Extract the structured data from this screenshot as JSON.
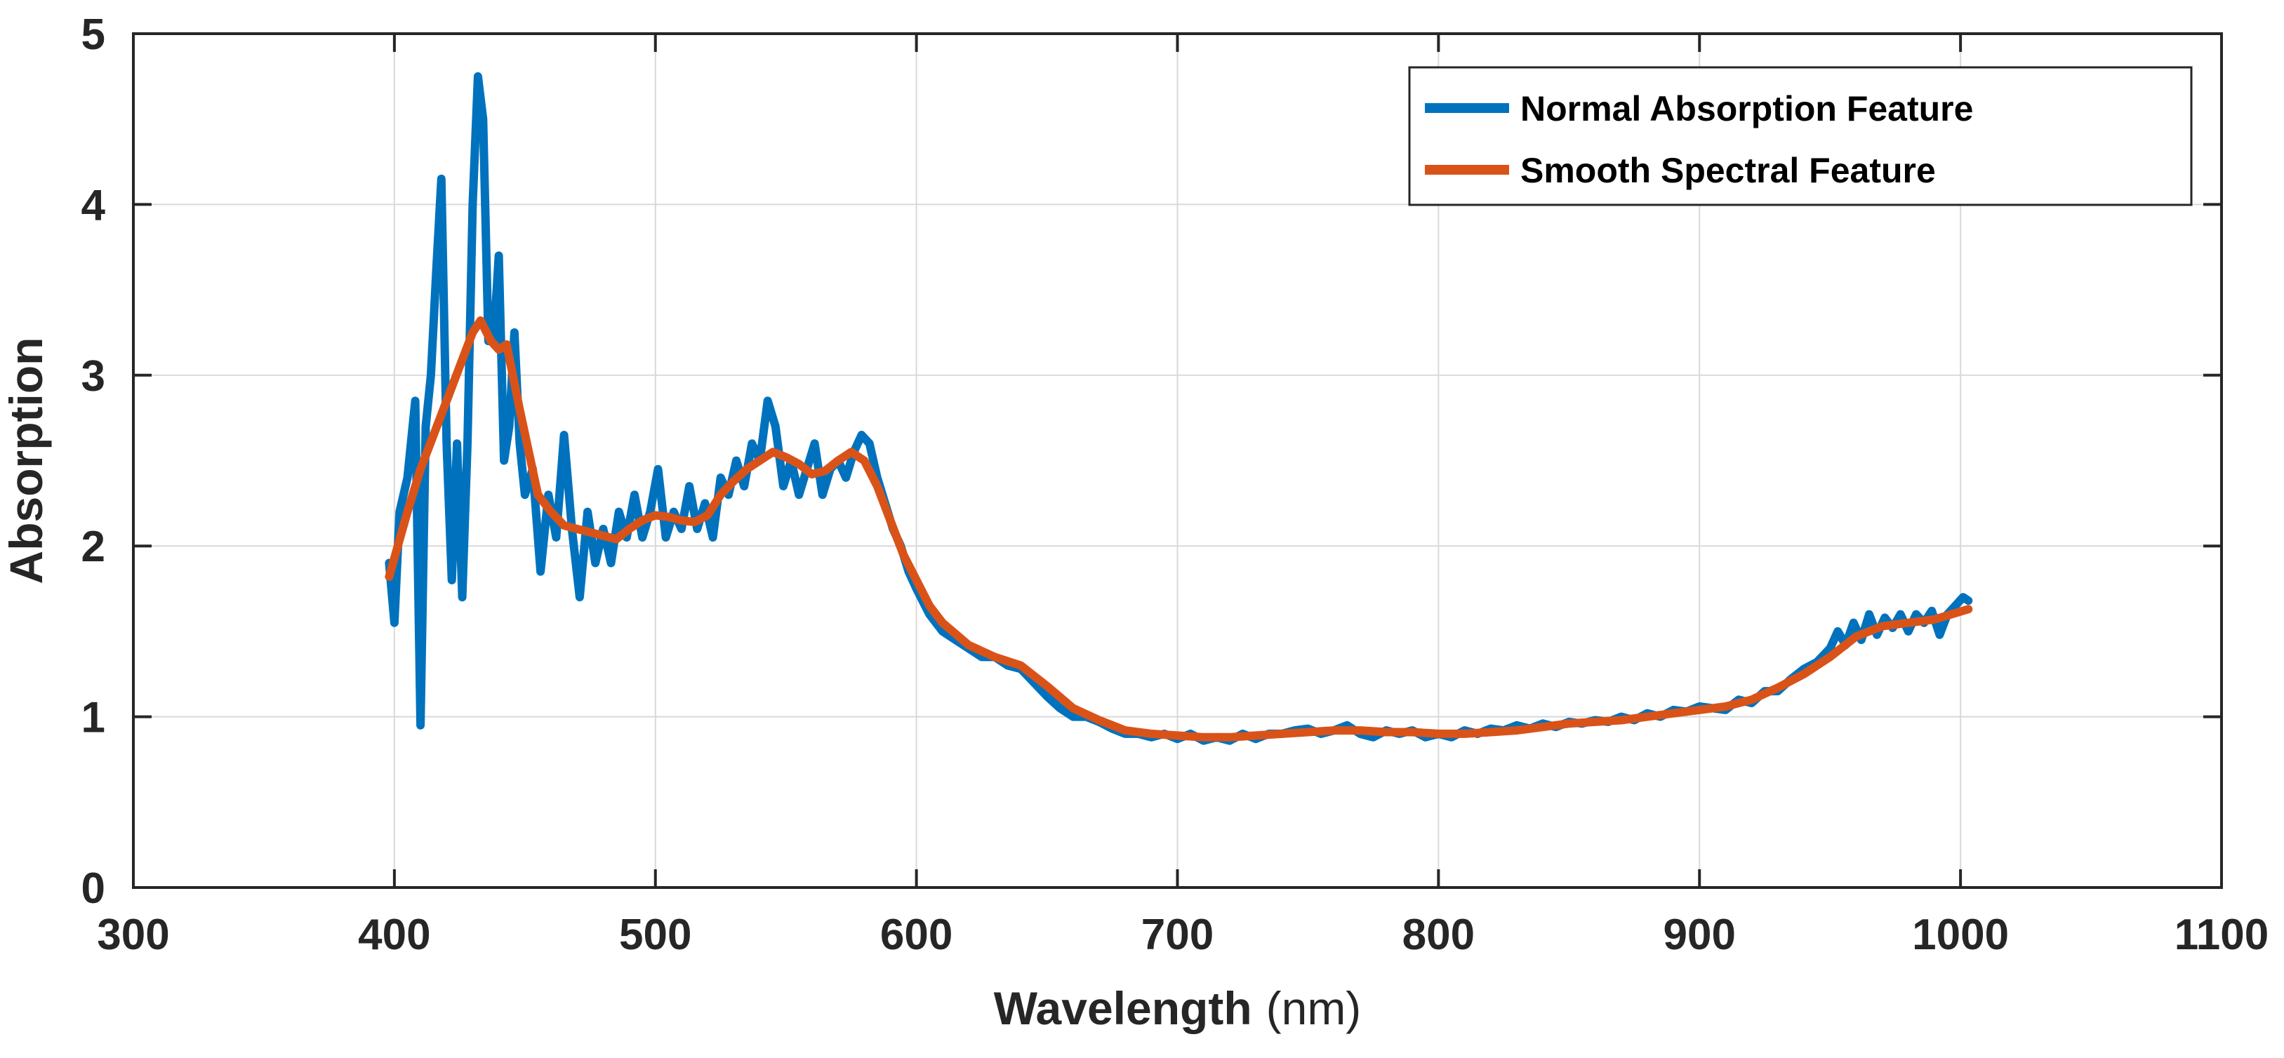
{
  "chart_data": {
    "type": "line",
    "title": "",
    "xlabel": "Wavelength",
    "xlabel_unit": "(nm)",
    "ylabel": "Absorption",
    "xlim": [
      300,
      1100
    ],
    "ylim": [
      0,
      5
    ],
    "xticks": [
      300,
      400,
      500,
      600,
      700,
      800,
      900,
      1000,
      1100
    ],
    "yticks": [
      0,
      1,
      2,
      3,
      4,
      5
    ],
    "grid": true,
    "legend_position": "top-right",
    "series": [
      {
        "name": "Normal Absorption Feature",
        "color": "#0072BD",
        "x": [
          398,
          400,
          402,
          405,
          408,
          410,
          412,
          414,
          416,
          418,
          420,
          422,
          424,
          426,
          428,
          430,
          432,
          434,
          436,
          438,
          440,
          442,
          444,
          446,
          448,
          450,
          453,
          456,
          459,
          462,
          465,
          468,
          471,
          474,
          477,
          480,
          483,
          486,
          489,
          492,
          495,
          498,
          501,
          504,
          507,
          510,
          513,
          516,
          519,
          522,
          525,
          528,
          531,
          534,
          537,
          540,
          543,
          546,
          549,
          552,
          555,
          558,
          561,
          564,
          567,
          570,
          573,
          576,
          579,
          582,
          585,
          588,
          591,
          594,
          597,
          600,
          605,
          610,
          615,
          620,
          625,
          630,
          635,
          640,
          645,
          650,
          655,
          660,
          665,
          670,
          675,
          680,
          685,
          690,
          695,
          700,
          705,
          710,
          715,
          720,
          725,
          730,
          735,
          740,
          745,
          750,
          755,
          760,
          765,
          770,
          775,
          780,
          785,
          790,
          795,
          800,
          805,
          810,
          815,
          820,
          825,
          830,
          835,
          840,
          845,
          850,
          855,
          860,
          865,
          870,
          875,
          880,
          885,
          890,
          895,
          900,
          905,
          910,
          915,
          920,
          925,
          930,
          935,
          940,
          945,
          950,
          953,
          956,
          959,
          962,
          965,
          968,
          971,
          974,
          977,
          980,
          983,
          986,
          989,
          992,
          995,
          998,
          1001,
          1003
        ],
        "y": [
          1.9,
          1.55,
          2.2,
          2.4,
          2.85,
          0.95,
          2.7,
          3.0,
          3.6,
          4.15,
          2.6,
          1.8,
          2.6,
          1.7,
          2.6,
          4.0,
          4.75,
          4.5,
          3.2,
          3.2,
          3.7,
          2.5,
          2.7,
          3.25,
          2.6,
          2.3,
          2.45,
          1.85,
          2.3,
          2.05,
          2.65,
          2.1,
          1.7,
          2.2,
          1.9,
          2.1,
          1.9,
          2.2,
          2.05,
          2.3,
          2.05,
          2.2,
          2.45,
          2.05,
          2.2,
          2.1,
          2.35,
          2.1,
          2.25,
          2.05,
          2.4,
          2.3,
          2.5,
          2.35,
          2.6,
          2.5,
          2.85,
          2.7,
          2.35,
          2.5,
          2.3,
          2.45,
          2.6,
          2.3,
          2.45,
          2.5,
          2.4,
          2.55,
          2.65,
          2.6,
          2.4,
          2.25,
          2.1,
          2.0,
          1.85,
          1.75,
          1.6,
          1.5,
          1.45,
          1.4,
          1.35,
          1.35,
          1.3,
          1.28,
          1.2,
          1.12,
          1.05,
          1.0,
          1.0,
          0.97,
          0.93,
          0.9,
          0.9,
          0.88,
          0.9,
          0.87,
          0.9,
          0.86,
          0.88,
          0.86,
          0.9,
          0.87,
          0.9,
          0.9,
          0.92,
          0.93,
          0.9,
          0.92,
          0.95,
          0.9,
          0.88,
          0.92,
          0.9,
          0.92,
          0.88,
          0.9,
          0.88,
          0.92,
          0.9,
          0.93,
          0.92,
          0.95,
          0.93,
          0.96,
          0.94,
          0.97,
          0.96,
          0.98,
          0.97,
          1.0,
          0.98,
          1.02,
          1.0,
          1.04,
          1.03,
          1.06,
          1.05,
          1.04,
          1.1,
          1.08,
          1.15,
          1.15,
          1.22,
          1.28,
          1.32,
          1.4,
          1.5,
          1.42,
          1.55,
          1.45,
          1.6,
          1.48,
          1.58,
          1.52,
          1.6,
          1.5,
          1.6,
          1.55,
          1.62,
          1.48,
          1.6,
          1.65,
          1.7,
          1.68
        ]
      },
      {
        "name": "Smooth Spectral Feature",
        "color": "#D95319",
        "x": [
          398,
          405,
          410,
          415,
          420,
          425,
          430,
          433,
          437,
          440,
          443,
          448,
          455,
          460,
          465,
          470,
          475,
          480,
          485,
          490,
          495,
          500,
          505,
          510,
          515,
          520,
          525,
          530,
          535,
          540,
          545,
          550,
          555,
          560,
          565,
          570,
          575,
          580,
          585,
          590,
          595,
          600,
          605,
          610,
          620,
          630,
          640,
          650,
          660,
          670,
          680,
          690,
          700,
          710,
          720,
          730,
          740,
          750,
          760,
          770,
          780,
          790,
          800,
          810,
          820,
          830,
          840,
          850,
          860,
          870,
          880,
          890,
          900,
          910,
          920,
          930,
          940,
          950,
          960,
          970,
          980,
          990,
          1003
        ],
        "y": [
          1.82,
          2.2,
          2.45,
          2.65,
          2.85,
          3.05,
          3.25,
          3.32,
          3.2,
          3.15,
          3.18,
          2.8,
          2.3,
          2.2,
          2.12,
          2.1,
          2.08,
          2.06,
          2.04,
          2.1,
          2.15,
          2.18,
          2.17,
          2.15,
          2.14,
          2.18,
          2.3,
          2.38,
          2.45,
          2.5,
          2.55,
          2.52,
          2.48,
          2.42,
          2.44,
          2.5,
          2.55,
          2.5,
          2.35,
          2.15,
          1.95,
          1.8,
          1.65,
          1.55,
          1.42,
          1.35,
          1.3,
          1.18,
          1.05,
          0.98,
          0.92,
          0.9,
          0.89,
          0.88,
          0.88,
          0.89,
          0.9,
          0.91,
          0.92,
          0.92,
          0.91,
          0.91,
          0.9,
          0.9,
          0.91,
          0.92,
          0.94,
          0.96,
          0.97,
          0.98,
          1.0,
          1.02,
          1.04,
          1.06,
          1.1,
          1.17,
          1.25,
          1.35,
          1.47,
          1.53,
          1.55,
          1.57,
          1.63
        ]
      }
    ]
  }
}
